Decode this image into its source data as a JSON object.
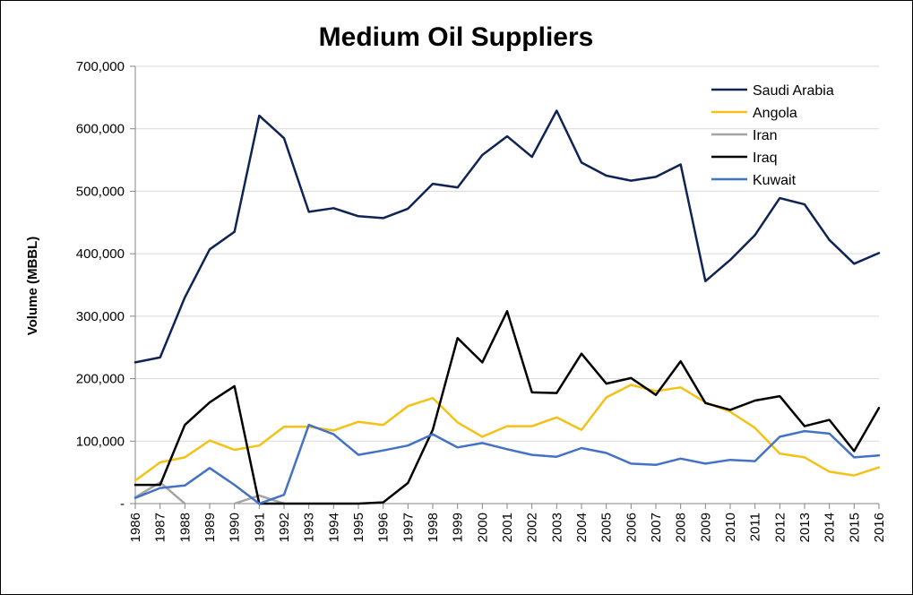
{
  "chart_data": {
    "type": "line",
    "title": "Medium Oil Suppliers",
    "ylabel": "Volume (MBBL)",
    "ylim": [
      0,
      700000
    ],
    "yticks": [
      0,
      100000,
      200000,
      300000,
      400000,
      500000,
      600000,
      700000
    ],
    "ytick_labels": [
      "-",
      "100,000",
      "200,000",
      "300,000",
      "400,000",
      "500,000",
      "600,000",
      "700,000"
    ],
    "x": [
      "1986",
      "1987",
      "1988",
      "1989",
      "1990",
      "1991",
      "1992",
      "1993",
      "1994",
      "1995",
      "1996",
      "1997",
      "1998",
      "1999",
      "2000",
      "2001",
      "2002",
      "2003",
      "2004",
      "2005",
      "2006",
      "2007",
      "2008",
      "2009",
      "2010",
      "2011",
      "2012",
      "2013",
      "2014",
      "2015",
      "2016"
    ],
    "grid": "horizontal",
    "legend_position": "top-right",
    "series": [
      {
        "name": "Saudi Arabia",
        "color": "#0f2454",
        "values": [
          226000,
          234000,
          330000,
          407000,
          435000,
          621000,
          585000,
          467000,
          473000,
          460000,
          457000,
          472000,
          512000,
          506000,
          558000,
          588000,
          555000,
          629000,
          546000,
          525000,
          517000,
          523000,
          543000,
          356000,
          390000,
          430000,
          489000,
          479000,
          422000,
          384000,
          401000
        ]
      },
      {
        "name": "Angola",
        "color": "#f5c116",
        "values": [
          37000,
          66000,
          74000,
          101000,
          86000,
          93000,
          123000,
          123000,
          117000,
          131000,
          126000,
          156000,
          169000,
          130000,
          107000,
          124000,
          124000,
          138000,
          118000,
          170000,
          190000,
          180000,
          186000,
          162000,
          147000,
          121000,
          80000,
          74000,
          51000,
          45000,
          58000
        ]
      },
      {
        "name": "Iran",
        "color": "#a5a5a5",
        "values": [
          10000,
          34000,
          0,
          null,
          0,
          13000,
          0,
          null,
          null,
          null,
          null,
          null,
          null,
          null,
          null,
          null,
          null,
          null,
          null,
          null,
          null,
          null,
          null,
          null,
          null,
          null,
          null,
          null,
          null,
          null,
          null
        ]
      },
      {
        "name": "Iraq",
        "color": "#000000",
        "values": [
          30000,
          30000,
          126000,
          162000,
          188000,
          0,
          0,
          0,
          0,
          0,
          2000,
          33000,
          118000,
          265000,
          226000,
          308000,
          178000,
          177000,
          240000,
          192000,
          201000,
          174000,
          228000,
          161000,
          150000,
          165000,
          172000,
          124000,
          134000,
          84000,
          153000
        ]
      },
      {
        "name": "Kuwait",
        "color": "#4472c4",
        "values": [
          9000,
          25000,
          29000,
          57000,
          30000,
          0,
          14000,
          126000,
          111000,
          78000,
          85000,
          93000,
          111000,
          90000,
          97000,
          87000,
          78000,
          75000,
          89000,
          81000,
          64000,
          62000,
          72000,
          64000,
          70000,
          68000,
          107000,
          116000,
          112000,
          74000,
          77000
        ]
      }
    ]
  }
}
